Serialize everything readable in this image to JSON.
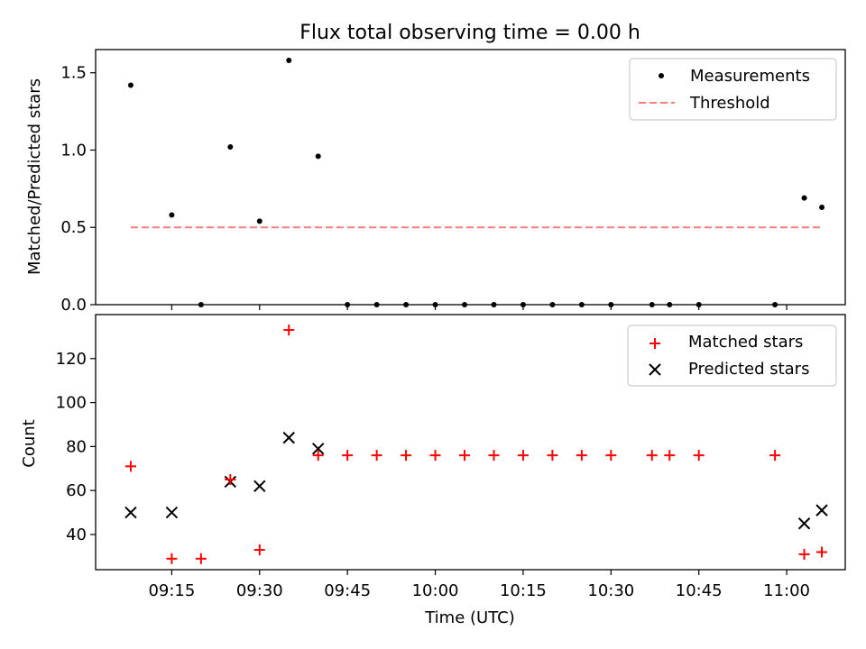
{
  "figure": {
    "title": "Flux total observing time = 0.00 h"
  },
  "chart_data": [
    {
      "type": "scatter",
      "ylabel": "Matched/Predicted stars",
      "xlim": [
        "09:02",
        "11:10"
      ],
      "ylim": [
        0,
        1.65
      ],
      "yticks": [
        0.0,
        0.5,
        1.0,
        1.5
      ],
      "ytick_labels": [
        "0.0",
        "0.5",
        "1.0",
        "1.5"
      ],
      "grid": false,
      "legend_position": "upper right",
      "series": [
        {
          "name": "Measurements",
          "marker": "dot",
          "color": "#000000",
          "points": [
            [
              "09:08",
              1.42
            ],
            [
              "09:15",
              0.58
            ],
            [
              "09:20",
              0.0
            ],
            [
              "09:25",
              1.02
            ],
            [
              "09:30",
              0.54
            ],
            [
              "09:35",
              1.58
            ],
            [
              "09:40",
              0.96
            ],
            [
              "09:45",
              0.0
            ],
            [
              "09:50",
              0.0
            ],
            [
              "09:55",
              0.0
            ],
            [
              "10:00",
              0.0
            ],
            [
              "10:05",
              0.0
            ],
            [
              "10:10",
              0.0
            ],
            [
              "10:15",
              0.0
            ],
            [
              "10:20",
              0.0
            ],
            [
              "10:25",
              0.0
            ],
            [
              "10:30",
              0.0
            ],
            [
              "10:37",
              0.0
            ],
            [
              "10:40",
              0.0
            ],
            [
              "10:45",
              0.0
            ],
            [
              "10:58",
              0.0
            ],
            [
              "11:03",
              0.69
            ],
            [
              "11:06",
              0.63
            ]
          ]
        },
        {
          "name": "Threshold",
          "style": "dashed",
          "color": "#ff7b7b",
          "points": [
            [
              "09:08",
              0.5
            ],
            [
              "11:06",
              0.5
            ]
          ]
        }
      ]
    },
    {
      "type": "scatter",
      "xlabel": "Time (UTC)",
      "ylabel": "Count",
      "xlim": [
        "09:02",
        "11:10"
      ],
      "ylim": [
        24,
        140
      ],
      "yticks": [
        40,
        60,
        80,
        100,
        120
      ],
      "xticks": [
        "09:15",
        "09:30",
        "09:45",
        "10:00",
        "10:15",
        "10:30",
        "10:45",
        "11:00"
      ],
      "grid": false,
      "legend_position": "upper right",
      "series": [
        {
          "name": "Matched stars",
          "marker": "plus",
          "color": "#ff0000",
          "points": [
            [
              "09:08",
              71
            ],
            [
              "09:15",
              29
            ],
            [
              "09:20",
              29
            ],
            [
              "09:25",
              65
            ],
            [
              "09:30",
              33
            ],
            [
              "09:35",
              133
            ],
            [
              "09:40",
              76
            ],
            [
              "09:45",
              76
            ],
            [
              "09:50",
              76
            ],
            [
              "09:55",
              76
            ],
            [
              "10:00",
              76
            ],
            [
              "10:05",
              76
            ],
            [
              "10:10",
              76
            ],
            [
              "10:15",
              76
            ],
            [
              "10:20",
              76
            ],
            [
              "10:25",
              76
            ],
            [
              "10:30",
              76
            ],
            [
              "10:37",
              76
            ],
            [
              "10:40",
              76
            ],
            [
              "10:45",
              76
            ],
            [
              "10:58",
              76
            ],
            [
              "11:03",
              31
            ],
            [
              "11:06",
              32
            ]
          ]
        },
        {
          "name": "Predicted stars",
          "marker": "x",
          "color": "#000000",
          "points": [
            [
              "09:08",
              50
            ],
            [
              "09:15",
              50
            ],
            [
              "09:25",
              64
            ],
            [
              "09:30",
              62
            ],
            [
              "09:35",
              84
            ],
            [
              "09:40",
              79
            ],
            [
              "11:03",
              45
            ],
            [
              "11:06",
              51
            ]
          ]
        }
      ]
    }
  ]
}
